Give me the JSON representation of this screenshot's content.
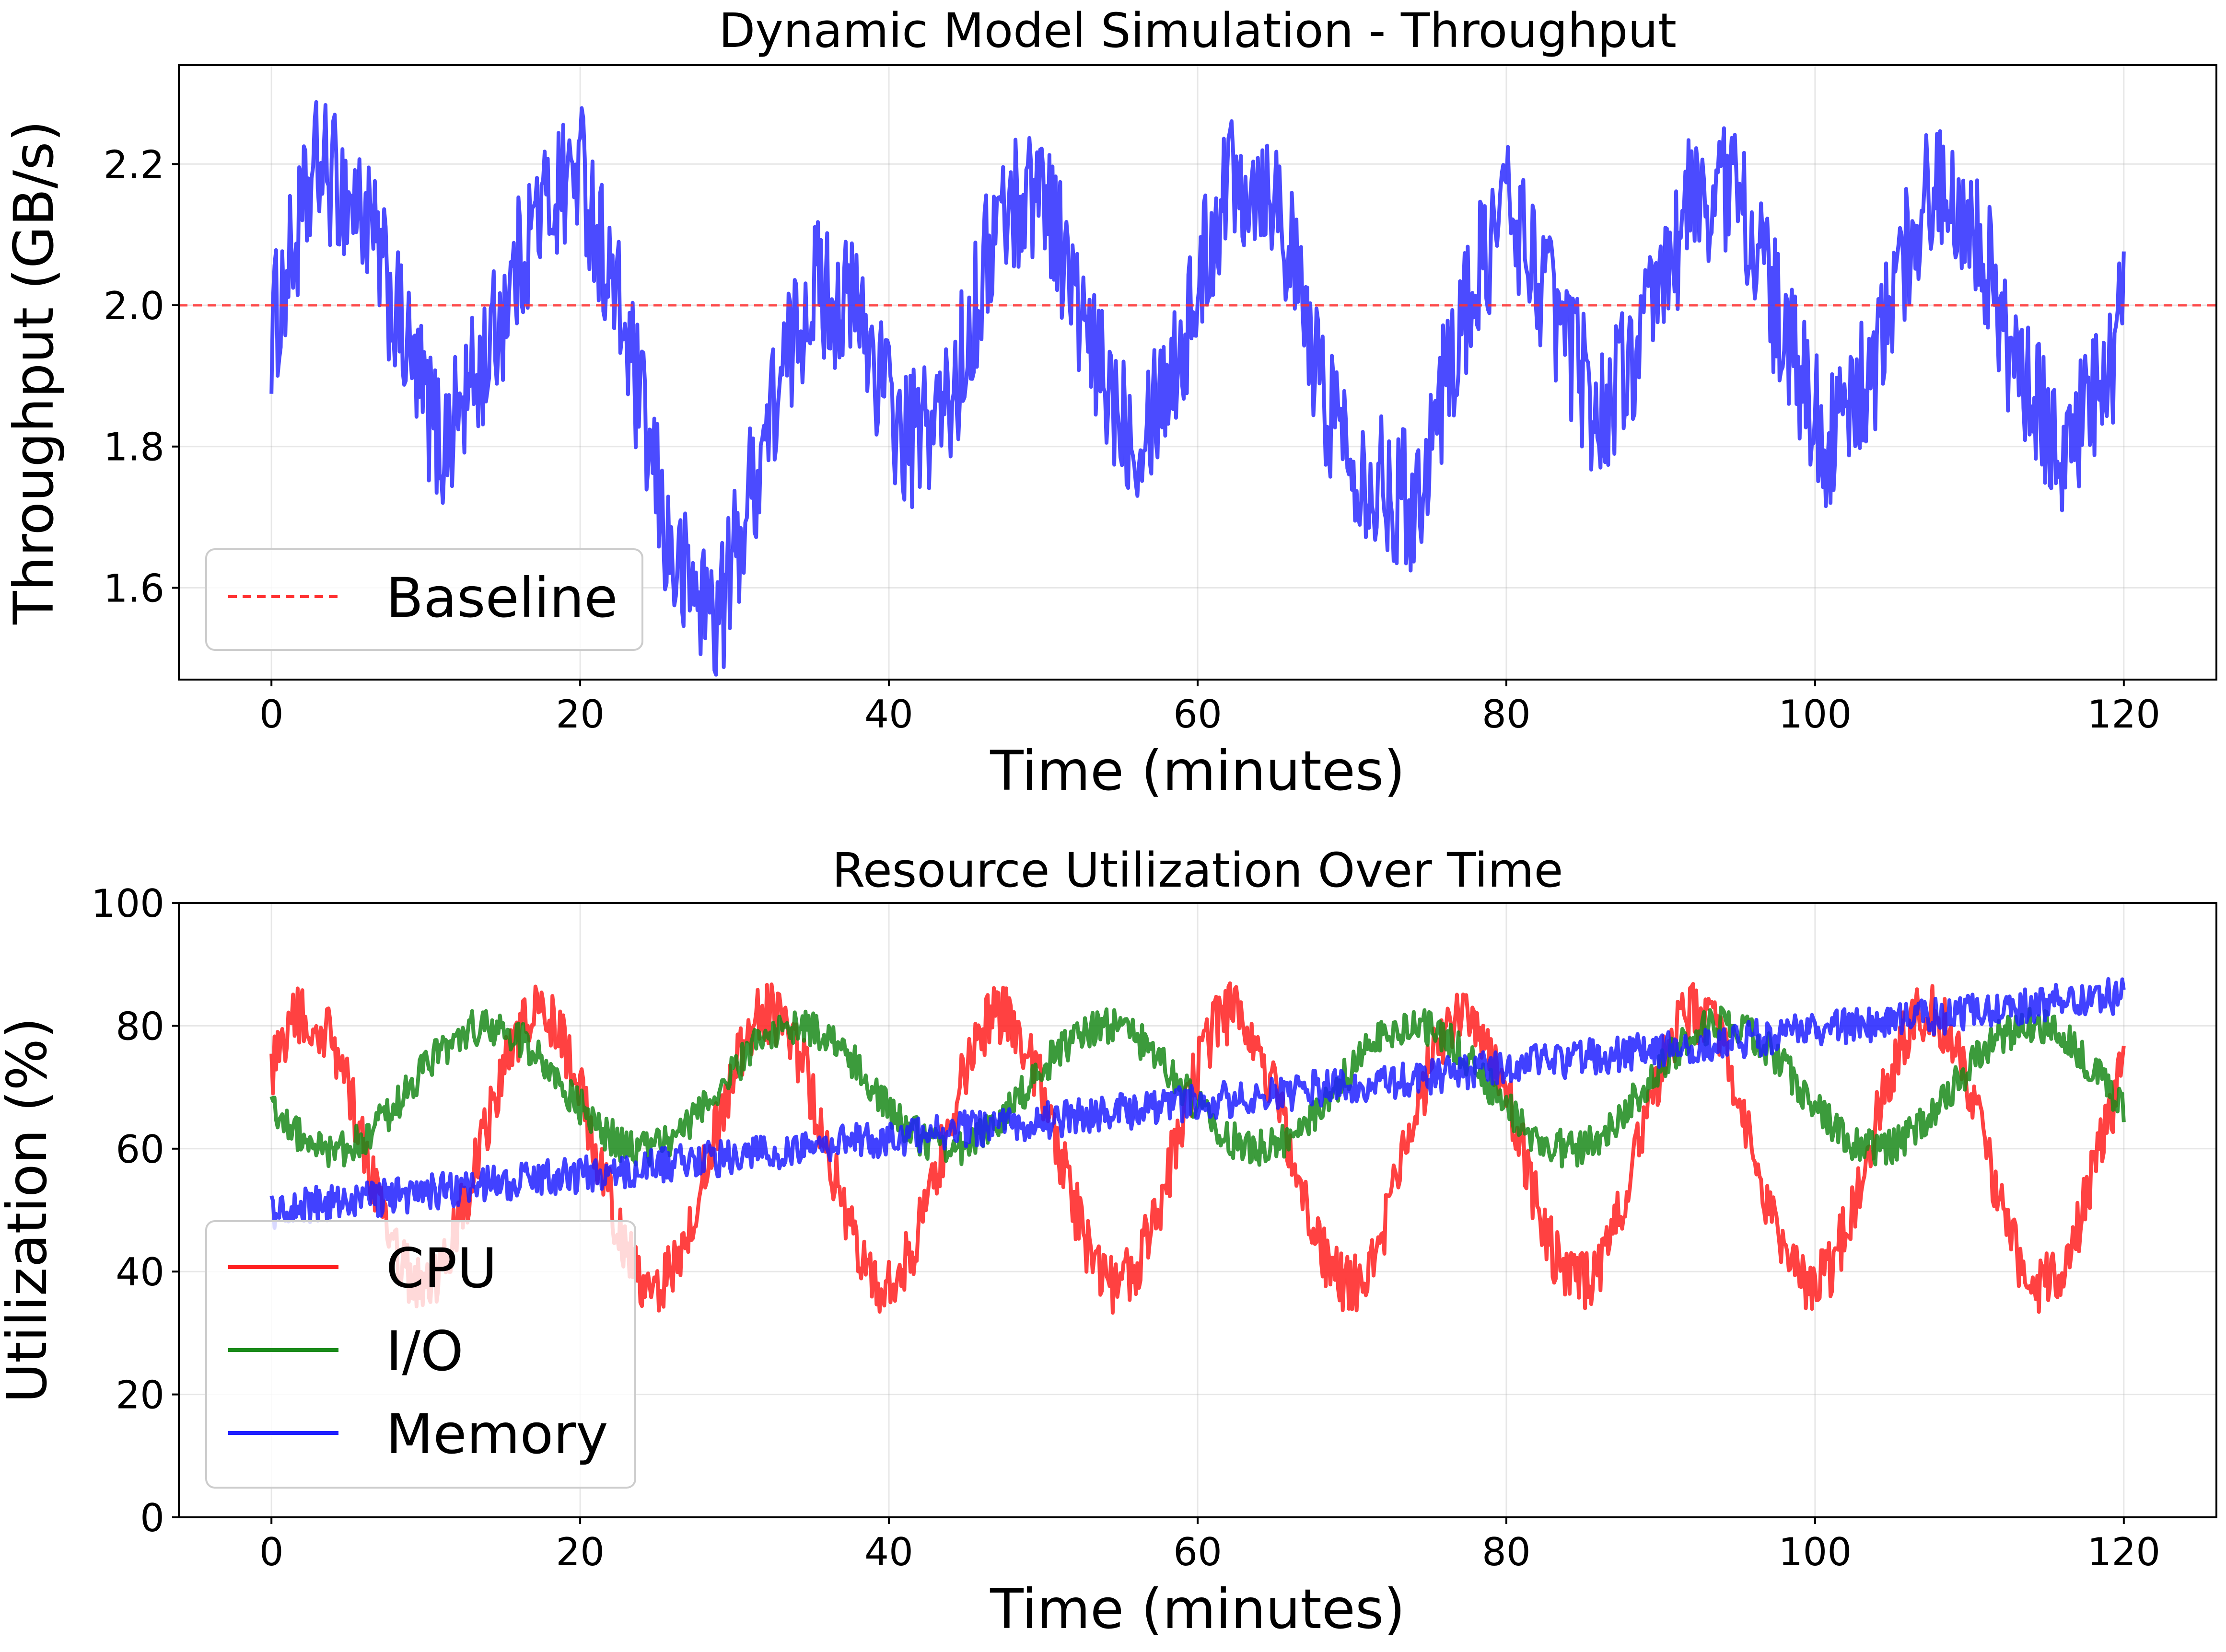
{
  "chart_data": [
    {
      "type": "line",
      "title": "Dynamic Model Simulation - Throughput",
      "xlabel": "Time (minutes)",
      "ylabel": "Throughput (GB/s)",
      "xlim": [
        -6,
        126
      ],
      "ylim": [
        1.47,
        2.34
      ],
      "xticks": [
        0,
        20,
        40,
        60,
        80,
        100,
        120
      ],
      "yticks": [
        1.6,
        1.8,
        2.0,
        2.2
      ],
      "xtick_labels": [
        "0",
        "20",
        "40",
        "60",
        "80",
        "100",
        "120"
      ],
      "ytick_labels": [
        "1.6",
        "1.8",
        "2.0",
        "2.2"
      ],
      "grid": true,
      "legend_position": "lower-left",
      "series": [
        {
          "type": "line",
          "color": "#2b2bff",
          "x": [
            0,
            3,
            6,
            9,
            11,
            14,
            17,
            20,
            23,
            26,
            29,
            32,
            35,
            38,
            41,
            44,
            47,
            50,
            53,
            56,
            59,
            62,
            65,
            68,
            71,
            74,
            77,
            80,
            83,
            86,
            89,
            92,
            95,
            98,
            101,
            104,
            107,
            110,
            113,
            116,
            119,
            120
          ],
          "y": [
            1.96,
            2.2,
            2.13,
            1.92,
            1.8,
            1.93,
            2.12,
            2.2,
            1.95,
            1.63,
            1.56,
            1.82,
            2.03,
            1.99,
            1.8,
            1.86,
            2.12,
            2.18,
            1.93,
            1.82,
            1.94,
            2.19,
            2.17,
            1.88,
            1.76,
            1.72,
            1.97,
            2.15,
            2.0,
            1.84,
            1.96,
            2.15,
            2.17,
            1.95,
            1.8,
            1.92,
            2.16,
            2.15,
            1.9,
            1.8,
            1.88,
            2.01
          ],
          "noise_amplitude": 0.1
        },
        {
          "type": "line",
          "name": "Baseline",
          "color": "#ff3030",
          "dashed": true,
          "constant": 2.0
        }
      ],
      "legend": [
        "Baseline"
      ]
    },
    {
      "type": "line",
      "title": "Resource Utilization Over Time",
      "xlabel": "Time (minutes)",
      "ylabel": "Utilization (%)",
      "xlim": [
        -6,
        126
      ],
      "ylim": [
        0,
        100
      ],
      "xticks": [
        0,
        20,
        40,
        60,
        80,
        100,
        120
      ],
      "yticks": [
        0,
        20,
        40,
        60,
        80,
        100
      ],
      "xtick_labels": [
        "0",
        "20",
        "40",
        "60",
        "80",
        "100",
        "120"
      ],
      "ytick_labels": [
        "0",
        "20",
        "40",
        "60",
        "80",
        "100"
      ],
      "grid": true,
      "legend_position": "lower-left",
      "series": [
        {
          "name": "CPU",
          "color": "#ff2020",
          "center": 60,
          "amplitude": 22,
          "period": 15,
          "phase": 0.1,
          "noise_amplitude": 5,
          "x_start": 0,
          "x_end": 120
        },
        {
          "name": "I/O",
          "color": "#1a8a1a",
          "center": 70,
          "amplitude": 10,
          "period": 20,
          "phase": 0.55,
          "noise_amplitude": 3,
          "x_start": 0,
          "x_end": 120
        },
        {
          "name": "Memory",
          "color": "#2020ff",
          "start_value": 50,
          "end_value": 85,
          "noise_amplitude": 3,
          "x_start": 0,
          "x_end": 120
        }
      ],
      "legend": [
        "CPU",
        "I/O",
        "Memory"
      ]
    }
  ]
}
